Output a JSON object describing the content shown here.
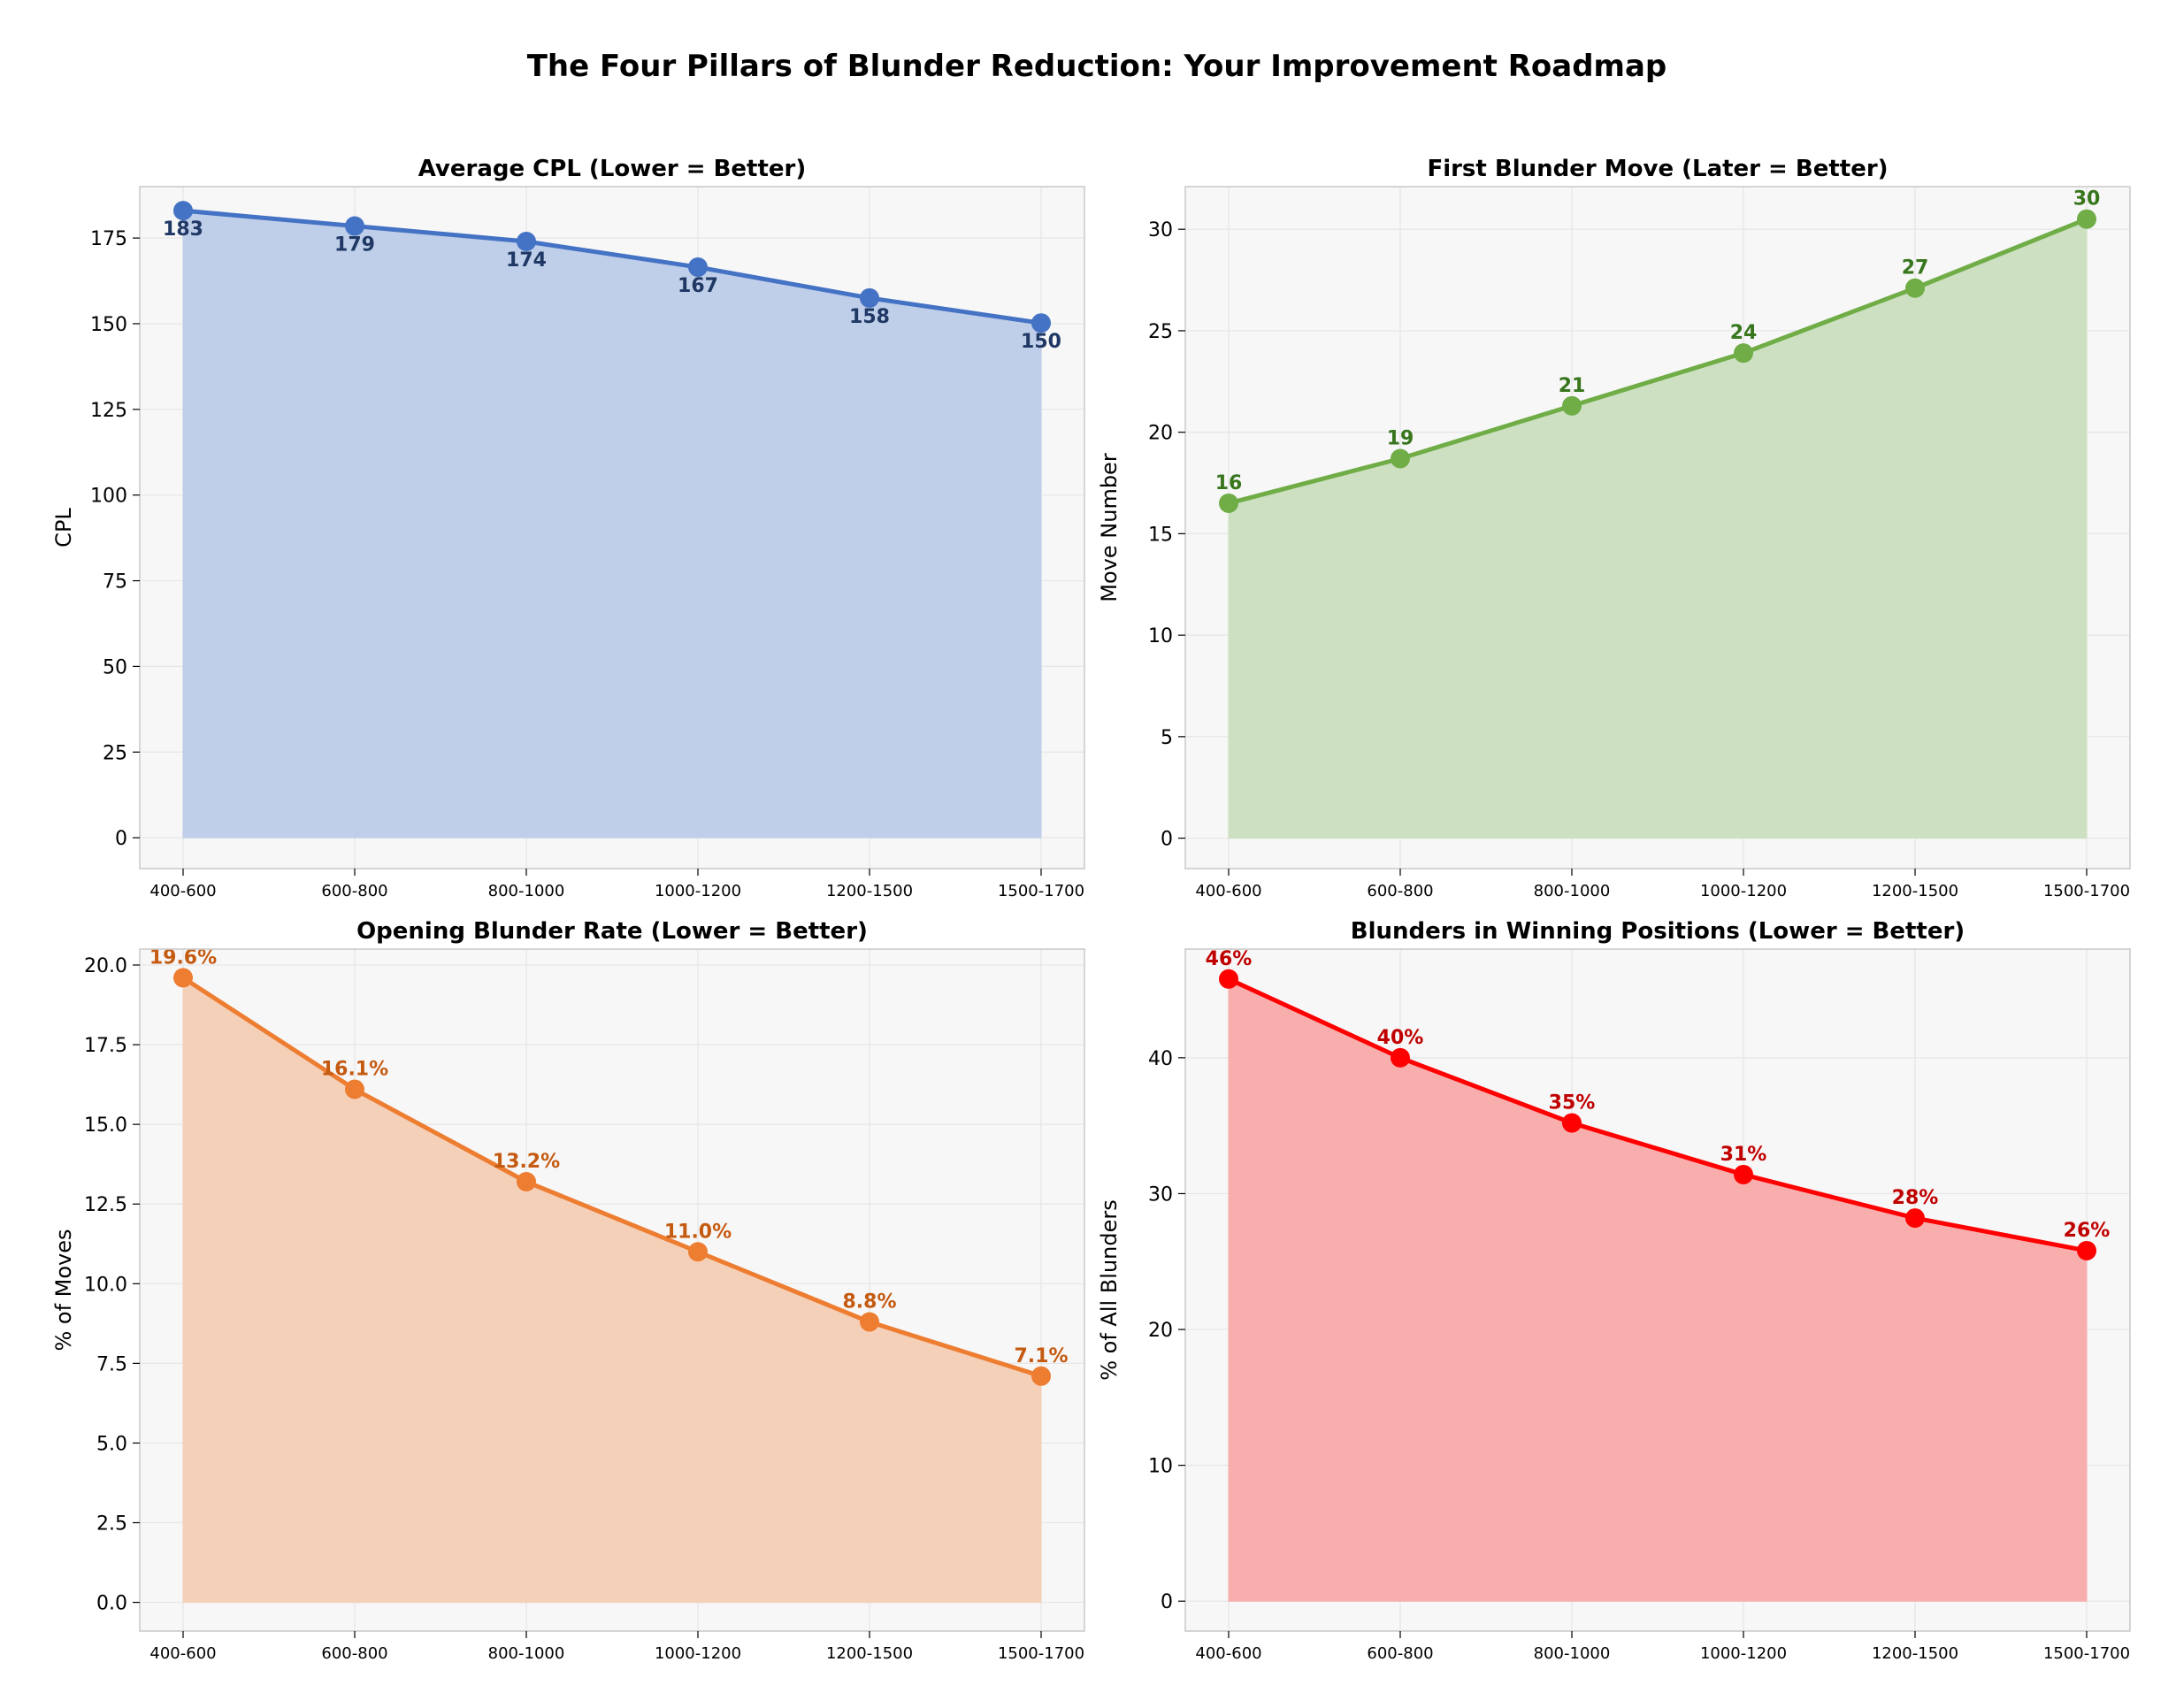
{
  "title": "The Four Pillars of Blunder Reduction: Your Improvement Roadmap",
  "chart_data": [
    {
      "type": "area",
      "title": "Average CPL (Lower = Better)",
      "xlabel": "",
      "ylabel": "CPL",
      "categories": [
        "400-600",
        "600-800",
        "800-1000",
        "1000-1200",
        "1200-1500",
        "1500-1700"
      ],
      "values": [
        183,
        178.5,
        174,
        166.5,
        157.5,
        150.2
      ],
      "labels": [
        "183",
        "179",
        "174",
        "167",
        "158",
        "150"
      ],
      "label_position": "below",
      "ylim": [
        -9,
        190
      ],
      "yticks": [
        0,
        25,
        50,
        75,
        100,
        125,
        150,
        175
      ],
      "ytick_labels": [
        "0",
        "25",
        "50",
        "75",
        "100",
        "125",
        "150",
        "175"
      ],
      "grid": true,
      "line_color": "#4472C4",
      "fill_color": "#BFCEE9",
      "label_color": "#1F3864"
    },
    {
      "type": "area",
      "title": "First Blunder Move (Later = Better)",
      "xlabel": "",
      "ylabel": "Move Number",
      "categories": [
        "400-600",
        "600-800",
        "800-1000",
        "1000-1200",
        "1200-1500",
        "1500-1700"
      ],
      "values": [
        16.5,
        18.7,
        21.3,
        23.9,
        27.1,
        30.5
      ],
      "labels": [
        "16",
        "19",
        "21",
        "24",
        "27",
        "30"
      ],
      "label_position": "above",
      "ylim": [
        -1.5,
        32.1
      ],
      "yticks": [
        0,
        5,
        10,
        15,
        20,
        25,
        30
      ],
      "ytick_labels": [
        "0",
        "5",
        "10",
        "15",
        "20",
        "25",
        "30"
      ],
      "grid": true,
      "line_color": "#70AD47",
      "fill_color": "#CDE1C2",
      "label_color": "#38761D"
    },
    {
      "type": "area",
      "title": "Opening Blunder Rate (Lower = Better)",
      "xlabel": "",
      "ylabel": "% of Moves",
      "categories": [
        "400-600",
        "600-800",
        "800-1000",
        "1000-1200",
        "1200-1500",
        "1500-1700"
      ],
      "values": [
        19.6,
        16.1,
        13.2,
        11.0,
        8.8,
        7.1
      ],
      "labels": [
        "19.6%",
        "16.1%",
        "13.2%",
        "11.0%",
        "8.8%",
        "7.1%"
      ],
      "label_position": "above",
      "ylim": [
        -0.9,
        20.5
      ],
      "yticks": [
        0,
        2.5,
        5,
        7.5,
        10,
        12.5,
        15,
        17.5,
        20
      ],
      "ytick_labels": [
        "0.0",
        "2.5",
        "5.0",
        "7.5",
        "10.0",
        "12.5",
        "15.0",
        "17.5",
        "20.0"
      ],
      "grid": true,
      "line_color": "#ED7D31",
      "fill_color": "#F5D0B9",
      "label_color": "#C55A11"
    },
    {
      "type": "area",
      "title": "Blunders in Winning Positions (Lower = Better)",
      "xlabel": "",
      "ylabel": "% of All Blunders",
      "categories": [
        "400-600",
        "600-800",
        "800-1000",
        "1000-1200",
        "1200-1500",
        "1500-1700"
      ],
      "values": [
        45.8,
        40.0,
        35.2,
        31.4,
        28.2,
        25.8
      ],
      "labels": [
        "46%",
        "40%",
        "35%",
        "31%",
        "28%",
        "26%"
      ],
      "label_position": "above",
      "ylim": [
        -2.2,
        48.0
      ],
      "yticks": [
        0,
        10,
        20,
        30,
        40
      ],
      "ytick_labels": [
        "0",
        "10",
        "20",
        "30",
        "40"
      ],
      "grid": true,
      "line_color": "#FF0000",
      "fill_color": "#F9AEAE",
      "label_color": "#C00000"
    }
  ]
}
